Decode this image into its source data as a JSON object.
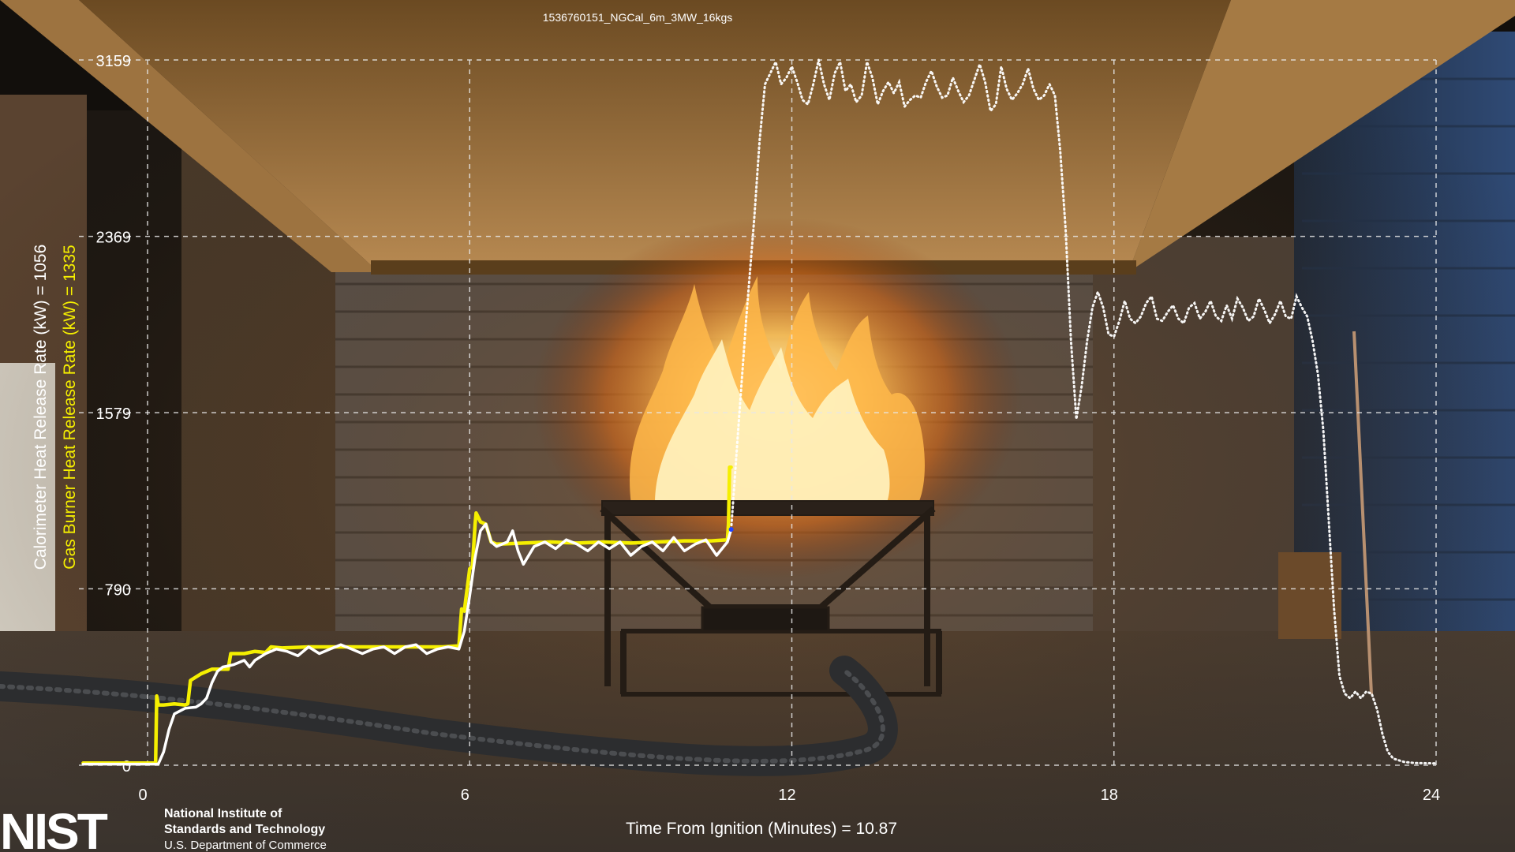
{
  "video_title": "1536760151_NGCal_6m_3MW_16kgs",
  "left_axis": {
    "calorimeter_label": "Calorimeter Heat Release Rate (kW) = 1056",
    "burner_label": "Gas Burner Heat Release Rate (kW) = 1335"
  },
  "x_axis": {
    "label": "Time From Ignition (Minutes) = 10.87"
  },
  "logo": {
    "mark": "NIST",
    "line1": "National Institute of",
    "line2": "Standards and Technology",
    "line3": "U.S. Department of Commerce"
  },
  "colors": {
    "calorimeter": "#ffffff",
    "burner": "#f5ef00",
    "grid": "#e8e8e8"
  },
  "chart_data": {
    "type": "line",
    "xlim": [
      0,
      24
    ],
    "ylim": [
      0,
      3159
    ],
    "x_ticks": [
      0,
      6,
      12,
      18,
      24
    ],
    "y_ticks": [
      0,
      790,
      1579,
      2369,
      3159
    ],
    "grid": true,
    "current_time": 10.87,
    "series": [
      {
        "name": "Gas Burner Heat Release Rate (kW)",
        "color": "#f5ef00",
        "points": [
          [
            -1.2,
            10
          ],
          [
            0.1,
            10
          ],
          [
            0.15,
            10
          ],
          [
            0.17,
            310
          ],
          [
            0.2,
            270
          ],
          [
            0.3,
            270
          ],
          [
            0.5,
            275
          ],
          [
            0.7,
            270
          ],
          [
            0.75,
            275
          ],
          [
            0.8,
            380
          ],
          [
            1.0,
            410
          ],
          [
            1.2,
            430
          ],
          [
            1.5,
            430
          ],
          [
            1.55,
            500
          ],
          [
            1.8,
            500
          ],
          [
            2.0,
            510
          ],
          [
            2.2,
            505
          ],
          [
            2.3,
            530
          ],
          [
            2.5,
            525
          ],
          [
            3,
            530
          ],
          [
            3.5,
            530
          ],
          [
            4,
            530
          ],
          [
            4.5,
            530
          ],
          [
            5,
            530
          ],
          [
            5.5,
            530
          ],
          [
            5.8,
            535
          ],
          [
            5.85,
            700
          ],
          [
            5.9,
            690
          ],
          [
            6.0,
            880
          ],
          [
            6.05,
            890
          ],
          [
            6.1,
            1080
          ],
          [
            6.12,
            1130
          ],
          [
            6.2,
            1090
          ],
          [
            6.3,
            1080
          ],
          [
            6.4,
            1000
          ],
          [
            6.5,
            990
          ],
          [
            7,
            995
          ],
          [
            7.5,
            1000
          ],
          [
            8,
            995
          ],
          [
            8.5,
            1000
          ],
          [
            9,
            995
          ],
          [
            9.5,
            1000
          ],
          [
            10,
            1005
          ],
          [
            10.5,
            1005
          ],
          [
            10.8,
            1010
          ],
          [
            10.82,
            1080
          ],
          [
            10.84,
            1335
          ],
          [
            10.87,
            1335
          ]
        ]
      },
      {
        "name": "Calorimeter Heat Release Rate (kW)",
        "color": "#ffffff",
        "points": [
          [
            -1.2,
            5
          ],
          [
            0.1,
            5
          ],
          [
            0.2,
            5
          ],
          [
            0.3,
            60
          ],
          [
            0.4,
            160
          ],
          [
            0.5,
            230
          ],
          [
            0.7,
            255
          ],
          [
            0.9,
            260
          ],
          [
            1.0,
            275
          ],
          [
            1.1,
            300
          ],
          [
            1.2,
            370
          ],
          [
            1.3,
            420
          ],
          [
            1.4,
            440
          ],
          [
            1.5,
            445
          ],
          [
            1.6,
            450
          ],
          [
            1.8,
            470
          ],
          [
            1.9,
            440
          ],
          [
            2.0,
            470
          ],
          [
            2.2,
            500
          ],
          [
            2.4,
            520
          ],
          [
            2.6,
            510
          ],
          [
            2.8,
            490
          ],
          [
            3.0,
            530
          ],
          [
            3.2,
            500
          ],
          [
            3.4,
            520
          ],
          [
            3.6,
            540
          ],
          [
            3.8,
            520
          ],
          [
            4.0,
            500
          ],
          [
            4.2,
            520
          ],
          [
            4.4,
            530
          ],
          [
            4.6,
            500
          ],
          [
            4.8,
            530
          ],
          [
            5.0,
            540
          ],
          [
            5.2,
            500
          ],
          [
            5.4,
            520
          ],
          [
            5.6,
            530
          ],
          [
            5.8,
            520
          ],
          [
            5.9,
            600
          ],
          [
            6.0,
            760
          ],
          [
            6.1,
            930
          ],
          [
            6.2,
            1050
          ],
          [
            6.3,
            1080
          ],
          [
            6.4,
            1000
          ],
          [
            6.5,
            980
          ],
          [
            6.7,
            1000
          ],
          [
            6.8,
            1050
          ],
          [
            6.9,
            960
          ],
          [
            7.0,
            900
          ],
          [
            7.2,
            980
          ],
          [
            7.4,
            1000
          ],
          [
            7.6,
            970
          ],
          [
            7.8,
            1010
          ],
          [
            8.0,
            990
          ],
          [
            8.2,
            960
          ],
          [
            8.4,
            1000
          ],
          [
            8.6,
            970
          ],
          [
            8.8,
            1000
          ],
          [
            9.0,
            940
          ],
          [
            9.2,
            980
          ],
          [
            9.4,
            1000
          ],
          [
            9.6,
            960
          ],
          [
            9.8,
            1020
          ],
          [
            10.0,
            960
          ],
          [
            10.2,
            990
          ],
          [
            10.4,
            1010
          ],
          [
            10.6,
            940
          ],
          [
            10.8,
            1000
          ],
          [
            10.87,
            1056
          ]
        ]
      }
    ],
    "future_series": {
      "name": "Calorimeter Heat Release Rate (kW) (upcoming)",
      "color": "#ffffff",
      "points": [
        [
          10.87,
          1056
        ],
        [
          11.0,
          1500
        ],
        [
          11.15,
          2000
        ],
        [
          11.3,
          2450
        ],
        [
          11.4,
          2800
        ],
        [
          11.5,
          3050
        ],
        [
          11.6,
          3100
        ],
        [
          11.7,
          3150
        ],
        [
          11.8,
          3050
        ],
        [
          11.9,
          3080
        ],
        [
          12.0,
          3130
        ],
        [
          12.1,
          3060
        ],
        [
          12.2,
          2980
        ],
        [
          12.3,
          2960
        ],
        [
          12.4,
          3050
        ],
        [
          12.5,
          3159
        ],
        [
          12.6,
          3050
        ],
        [
          12.7,
          2980
        ],
        [
          12.8,
          3100
        ],
        [
          12.9,
          3150
        ],
        [
          13.0,
          3020
        ],
        [
          13.1,
          3050
        ],
        [
          13.2,
          2970
        ],
        [
          13.3,
          3000
        ],
        [
          13.4,
          3150
        ],
        [
          13.5,
          3080
        ],
        [
          13.6,
          2960
        ],
        [
          13.7,
          3020
        ],
        [
          13.8,
          3060
        ],
        [
          13.9,
          3010
        ],
        [
          14.0,
          3060
        ],
        [
          14.1,
          2950
        ],
        [
          14.2,
          2980
        ],
        [
          14.3,
          3000
        ],
        [
          14.4,
          2990
        ],
        [
          14.5,
          3060
        ],
        [
          14.6,
          3110
        ],
        [
          14.7,
          3040
        ],
        [
          14.8,
          2990
        ],
        [
          14.9,
          3000
        ],
        [
          15.0,
          3080
        ],
        [
          15.1,
          3020
        ],
        [
          15.2,
          2970
        ],
        [
          15.3,
          3000
        ],
        [
          15.4,
          3070
        ],
        [
          15.5,
          3140
        ],
        [
          15.6,
          3060
        ],
        [
          15.7,
          2930
        ],
        [
          15.8,
          2960
        ],
        [
          15.9,
          3130
        ],
        [
          16.0,
          3030
        ],
        [
          16.1,
          2980
        ],
        [
          16.2,
          3010
        ],
        [
          16.3,
          3050
        ],
        [
          16.4,
          3120
        ],
        [
          16.5,
          3030
        ],
        [
          16.6,
          2980
        ],
        [
          16.7,
          3000
        ],
        [
          16.8,
          3050
        ],
        [
          16.9,
          3000
        ],
        [
          17.0,
          2750
        ],
        [
          17.1,
          2400
        ],
        [
          17.2,
          1900
        ],
        [
          17.3,
          1550
        ],
        [
          17.4,
          1700
        ],
        [
          17.5,
          1900
        ],
        [
          17.6,
          2050
        ],
        [
          17.7,
          2120
        ],
        [
          17.8,
          2050
        ],
        [
          17.9,
          1930
        ],
        [
          18.0,
          1920
        ],
        [
          18.1,
          1990
        ],
        [
          18.2,
          2080
        ],
        [
          18.3,
          2000
        ],
        [
          18.4,
          1980
        ],
        [
          18.5,
          2010
        ],
        [
          18.6,
          2070
        ],
        [
          18.7,
          2100
        ],
        [
          18.8,
          2000
        ],
        [
          18.9,
          1990
        ],
        [
          19.0,
          2030
        ],
        [
          19.1,
          2060
        ],
        [
          19.2,
          2000
        ],
        [
          19.3,
          1980
        ],
        [
          19.4,
          2050
        ],
        [
          19.5,
          2070
        ],
        [
          19.6,
          2000
        ],
        [
          19.7,
          2030
        ],
        [
          19.8,
          2080
        ],
        [
          19.9,
          2010
        ],
        [
          20.0,
          1990
        ],
        [
          20.1,
          2060
        ],
        [
          20.2,
          2000
        ],
        [
          20.3,
          2090
        ],
        [
          20.4,
          2050
        ],
        [
          20.5,
          1990
        ],
        [
          20.6,
          2010
        ],
        [
          20.7,
          2090
        ],
        [
          20.8,
          2040
        ],
        [
          20.9,
          1980
        ],
        [
          21.0,
          2020
        ],
        [
          21.1,
          2080
        ],
        [
          21.2,
          2010
        ],
        [
          21.3,
          2000
        ],
        [
          21.4,
          2100
        ],
        [
          21.5,
          2050
        ],
        [
          21.6,
          2010
        ],
        [
          21.7,
          1900
        ],
        [
          21.8,
          1750
        ],
        [
          21.9,
          1500
        ],
        [
          22.0,
          1100
        ],
        [
          22.1,
          700
        ],
        [
          22.2,
          400
        ],
        [
          22.3,
          320
        ],
        [
          22.4,
          300
        ],
        [
          22.5,
          330
        ],
        [
          22.6,
          300
        ],
        [
          22.7,
          330
        ],
        [
          22.8,
          320
        ],
        [
          22.9,
          250
        ],
        [
          23.0,
          140
        ],
        [
          23.1,
          60
        ],
        [
          23.2,
          30
        ],
        [
          23.4,
          15
        ],
        [
          23.6,
          10
        ],
        [
          24.0,
          8
        ]
      ]
    }
  }
}
